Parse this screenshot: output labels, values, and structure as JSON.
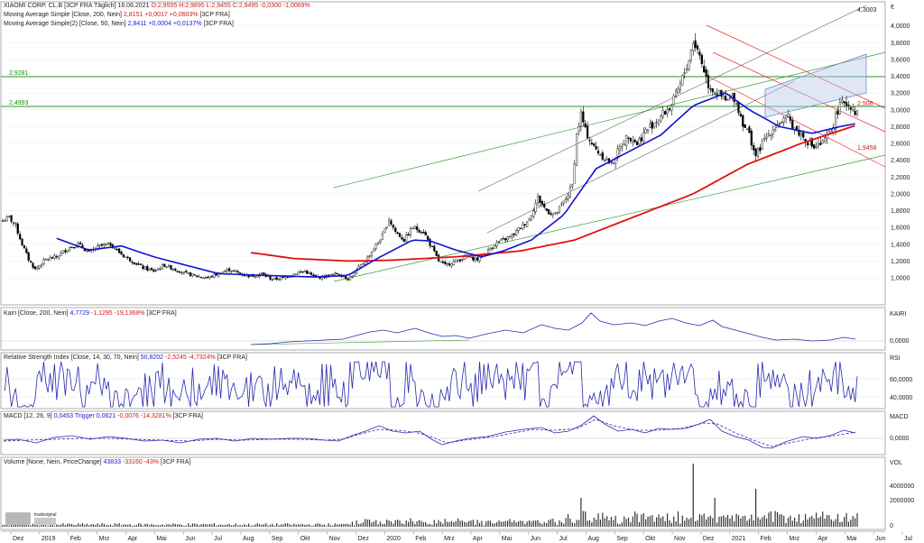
{
  "header": {
    "main": {
      "name": "XIAOMI CORP. CL.B [3CP FRA Täglich]",
      "date": "16.06.2021",
      "ohlc": "O:2,9555 H:2,9895 L:2,9455 C:2,9495",
      "change": "-0,0300 -1,0069%"
    },
    "ma200": {
      "name": "Moving Average Simple [Close, 200, Nein]",
      "value": "2,8151",
      "change": "+0,0017 +0,0603%",
      "src": "[3CP FRA]"
    },
    "ma50": {
      "name": "Moving Average Simple(2) [Close, 50, Nein]",
      "value": "2,8411",
      "change": "+0,0004 +0,0137%",
      "src": "[3CP FRA]"
    }
  },
  "annotations": {
    "currency": "€",
    "level_upper_left": "2,9281",
    "level_lower_left": "2,4993",
    "level_right_top": "4,3003",
    "level_right_mid": "2,506",
    "level_right_low": "1,9458"
  },
  "panels": {
    "kairi": {
      "title": "Kairi [Close, 200, Nein]",
      "value": "4,7729",
      "change": "-1,1295 -19,1368%",
      "src": "[3CP FRA]",
      "axis_label": "KAIRI",
      "tick": "0,0000"
    },
    "rsi": {
      "title": "Relative Strength Index [Close, 14, 30, 70, Nein]",
      "value": "50,8202",
      "change": "-2,5245 -4,7324%",
      "src": "[3CP FRA]",
      "axis_label": "RSI",
      "tick_hi": "60,0000",
      "tick_lo": "40,0000"
    },
    "macd": {
      "title": "MACD [12, 26, 9]",
      "value": "0,0453",
      "trigger_label": "Trigger",
      "trigger_value": "0,0621",
      "change": "-0,0076 -14,3281%",
      "src": "[3CP FRA]",
      "axis_label": "MACD",
      "tick": "0,0000"
    },
    "volume": {
      "title": "Volume [None, Nein, PriceChange]",
      "value": "43833",
      "change": "-33160 -43%",
      "src": "[3CP FRA]",
      "axis_label": "VOL",
      "tick_hi": "4000000",
      "tick_mid": "2000000",
      "tick_lo": "0"
    }
  },
  "branding": {
    "logo_text": "tradesignal"
  },
  "colors": {
    "price": "#000000",
    "ma200": "#e01010",
    "ma50": "#1010d0",
    "channel_green": "#3a9a3a",
    "channel_red": "#e83030",
    "indicator": "#2828b0",
    "levels": "#2a9a2a"
  },
  "chart_data": [
    {
      "type": "candlestick",
      "currency": "€",
      "y_ticks": [
        "4,0000",
        "3,8000",
        "3,6000",
        "3,4000",
        "3,2000",
        "3,0000",
        "2,8000",
        "2,6000",
        "2,4000",
        "2,2000",
        "2,0000",
        "1,8000",
        "1,6000",
        "1,4000",
        "1,2000",
        "1,0000"
      ],
      "y_range": [
        0.85,
        4.2
      ],
      "x_labels": [
        "Dez",
        "2019",
        "Feb",
        "Mrz",
        "Apr",
        "Mai",
        "Jun",
        "Jul",
        "Aug",
        "Sep",
        "Okt",
        "Nov",
        "Dez",
        "2020",
        "Feb",
        "Mrz",
        "Apr",
        "Mai",
        "Jun",
        "Jul",
        "Aug",
        "Sep",
        "Okt",
        "Nov",
        "Dez",
        "2021",
        "Feb",
        "Mrz",
        "Apr",
        "Mai",
        "Jun",
        "Jul"
      ],
      "price_keypoints": [
        [
          0,
          1.68
        ],
        [
          3,
          1.72
        ],
        [
          6,
          1.62
        ],
        [
          9,
          1.4
        ],
        [
          12,
          1.22
        ],
        [
          15,
          1.1
        ],
        [
          20,
          1.22
        ],
        [
          25,
          1.25
        ],
        [
          30,
          1.35
        ],
        [
          35,
          1.4
        ],
        [
          40,
          1.3
        ],
        [
          45,
          1.38
        ],
        [
          50,
          1.4
        ],
        [
          55,
          1.28
        ],
        [
          60,
          1.2
        ],
        [
          65,
          1.12
        ],
        [
          70,
          1.08
        ],
        [
          75,
          1.15
        ],
        [
          80,
          1.1
        ],
        [
          85,
          1.05
        ],
        [
          90,
          1.02
        ],
        [
          95,
          1.0
        ],
        [
          100,
          1.05
        ],
        [
          105,
          1.1
        ],
        [
          110,
          1.05
        ],
        [
          115,
          1.02
        ],
        [
          120,
          1.05
        ],
        [
          125,
          0.98
        ],
        [
          130,
          1.0
        ],
        [
          135,
          1.05
        ],
        [
          140,
          1.08
        ],
        [
          145,
          1.0
        ],
        [
          150,
          1.02
        ],
        [
          155,
          1.05
        ],
        [
          158,
          1.02
        ],
        [
          160,
          0.99
        ],
        [
          163,
          1.05
        ],
        [
          165,
          1.12
        ],
        [
          168,
          1.2
        ],
        [
          172,
          1.35
        ],
        [
          176,
          1.5
        ],
        [
          179,
          1.7
        ],
        [
          182,
          1.55
        ],
        [
          186,
          1.45
        ],
        [
          190,
          1.6
        ],
        [
          195,
          1.55
        ],
        [
          198,
          1.4
        ],
        [
          202,
          1.2
        ],
        [
          205,
          1.15
        ],
        [
          210,
          1.2
        ],
        [
          215,
          1.25
        ],
        [
          220,
          1.22
        ],
        [
          224,
          1.3
        ],
        [
          228,
          1.4
        ],
        [
          232,
          1.45
        ],
        [
          236,
          1.5
        ],
        [
          240,
          1.6
        ],
        [
          244,
          1.7
        ],
        [
          248,
          1.95
        ],
        [
          252,
          1.8
        ],
        [
          256,
          1.75
        ],
        [
          260,
          1.9
        ],
        [
          264,
          2.1
        ],
        [
          266,
          2.7
        ],
        [
          268,
          2.95
        ],
        [
          270,
          2.75
        ],
        [
          274,
          2.55
        ],
        [
          278,
          2.45
        ],
        [
          282,
          2.35
        ],
        [
          286,
          2.55
        ],
        [
          290,
          2.7
        ],
        [
          294,
          2.6
        ],
        [
          298,
          2.75
        ],
        [
          302,
          2.85
        ],
        [
          306,
          2.95
        ],
        [
          310,
          3.05
        ],
        [
          314,
          3.3
        ],
        [
          318,
          3.6
        ],
        [
          320,
          3.82
        ],
        [
          323,
          3.65
        ],
        [
          327,
          3.3
        ],
        [
          331,
          3.2
        ],
        [
          335,
          3.1
        ],
        [
          339,
          3.15
        ],
        [
          343,
          2.85
        ],
        [
          346,
          2.7
        ],
        [
          349,
          2.45
        ],
        [
          352,
          2.6
        ],
        [
          356,
          2.75
        ],
        [
          360,
          2.85
        ],
        [
          364,
          2.9
        ],
        [
          368,
          2.75
        ],
        [
          372,
          2.65
        ],
        [
          376,
          2.55
        ],
        [
          380,
          2.6
        ],
        [
          384,
          2.75
        ],
        [
          387,
          3.0
        ],
        [
          390,
          3.1
        ],
        [
          393,
          3.05
        ],
        [
          396,
          2.95
        ]
      ],
      "ma200_keypoints": [
        [
          115,
          1.3
        ],
        [
          135,
          1.23
        ],
        [
          160,
          1.2
        ],
        [
          180,
          1.21
        ],
        [
          210,
          1.25
        ],
        [
          240,
          1.32
        ],
        [
          265,
          1.45
        ],
        [
          290,
          1.7
        ],
        [
          320,
          2.0
        ],
        [
          345,
          2.35
        ],
        [
          370,
          2.6
        ],
        [
          396,
          2.82
        ]
      ],
      "ma50_keypoints": [
        [
          25,
          1.47
        ],
        [
          40,
          1.33
        ],
        [
          55,
          1.38
        ],
        [
          70,
          1.25
        ],
        [
          85,
          1.15
        ],
        [
          100,
          1.05
        ],
        [
          120,
          1.03
        ],
        [
          145,
          1.01
        ],
        [
          160,
          1.03
        ],
        [
          175,
          1.25
        ],
        [
          190,
          1.45
        ],
        [
          198,
          1.44
        ],
        [
          210,
          1.33
        ],
        [
          222,
          1.25
        ],
        [
          232,
          1.32
        ],
        [
          245,
          1.45
        ],
        [
          260,
          1.75
        ],
        [
          275,
          2.3
        ],
        [
          290,
          2.5
        ],
        [
          305,
          2.7
        ],
        [
          320,
          3.05
        ],
        [
          335,
          3.2
        ],
        [
          346,
          3.0
        ],
        [
          360,
          2.8
        ],
        [
          375,
          2.72
        ],
        [
          388,
          2.8
        ],
        [
          396,
          2.84
        ]
      ]
    }
  ]
}
